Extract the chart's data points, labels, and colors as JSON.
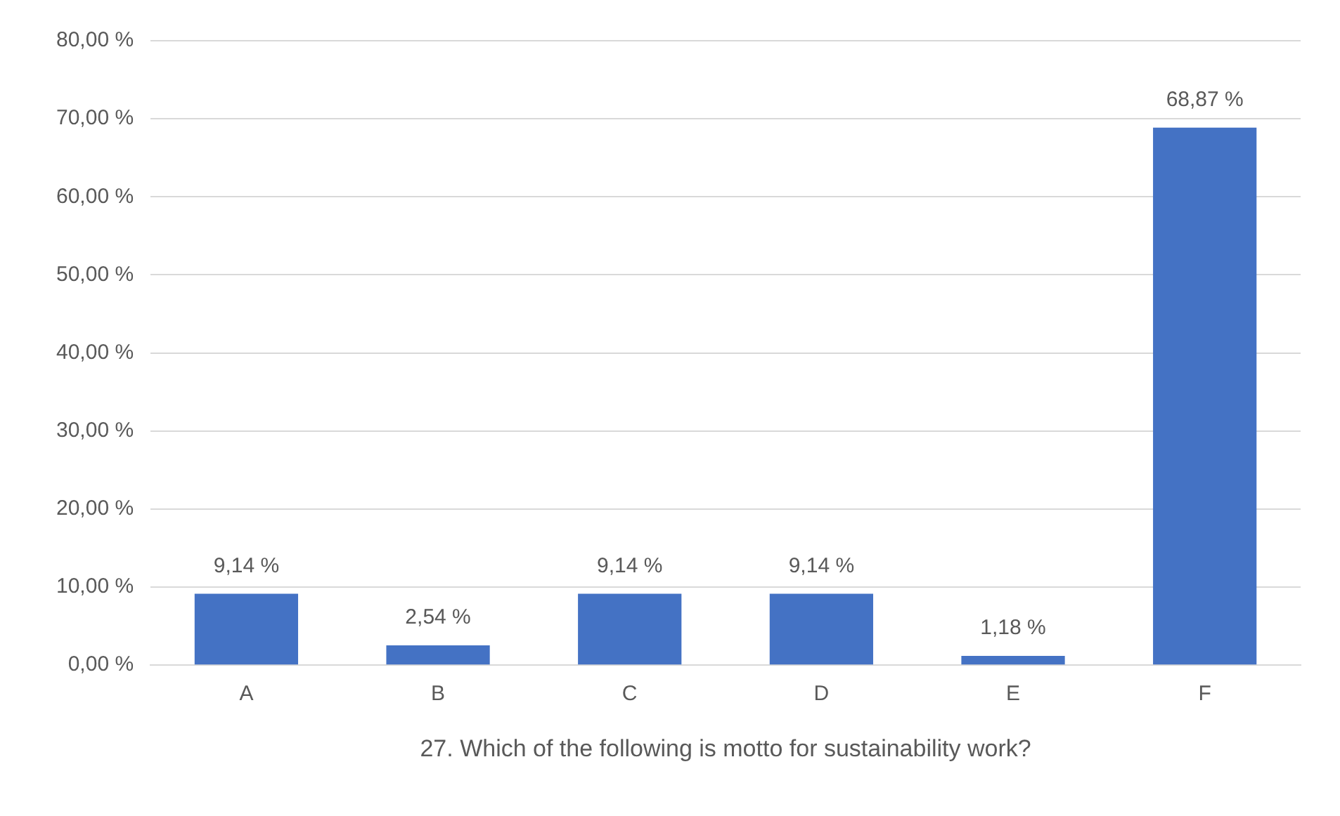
{
  "chart_data": {
    "type": "bar",
    "xlabel": "27. Which of the following is motto for sustainability work?",
    "categories": [
      "A",
      "B",
      "C",
      "D",
      "E",
      "F"
    ],
    "values": [
      9.14,
      2.54,
      9.14,
      9.14,
      1.18,
      68.87
    ],
    "value_labels": [
      "9,14 %",
      "2,54 %",
      "9,14 %",
      "9,14 %",
      "1,18 %",
      "68,87 %"
    ],
    "color": "#4472c4",
    "ylim": [
      0,
      80
    ],
    "yticks": [
      {
        "value": 0,
        "label": "0,00 %"
      },
      {
        "value": 10,
        "label": "10,00 %"
      },
      {
        "value": 20,
        "label": "20,00 %"
      },
      {
        "value": 30,
        "label": "30,00 %"
      },
      {
        "value": 40,
        "label": "40,00 %"
      },
      {
        "value": 50,
        "label": "50,00 %"
      },
      {
        "value": 60,
        "label": "60,00 %"
      },
      {
        "value": 70,
        "label": "70,00 %"
      },
      {
        "value": 80,
        "label": "80,00 %"
      }
    ],
    "grid": "y",
    "legend": false
  }
}
